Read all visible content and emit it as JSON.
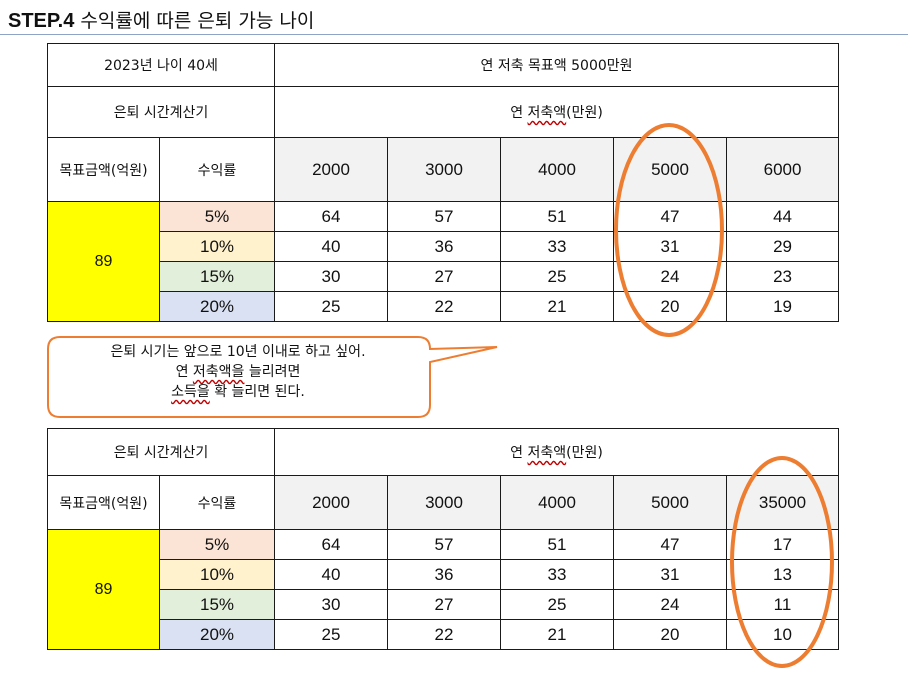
{
  "title": {
    "step": "STEP.4",
    "text": " 수익률에 따른 은퇴 가능 나이"
  },
  "table1": {
    "top_left": "2023년 나이 40세",
    "top_right": "연 저축 목표액 5000만원",
    "calc_label": "은퇴 시간계산기",
    "savings_prefix": "연 ",
    "savings_word": "저축액",
    "savings_suffix": "(만원)",
    "goal_header": "목표금액(억원)",
    "rate_header": "수익률",
    "columns": [
      "2000",
      "3000",
      "4000",
      "5000",
      "6000"
    ],
    "goal_value": "89",
    "rows": [
      {
        "rate": "5%",
        "values": [
          "64",
          "57",
          "51",
          "47",
          "44"
        ]
      },
      {
        "rate": "10%",
        "values": [
          "40",
          "36",
          "33",
          "31",
          "29"
        ]
      },
      {
        "rate": "15%",
        "values": [
          "30",
          "27",
          "25",
          "24",
          "23"
        ]
      },
      {
        "rate": "20%",
        "values": [
          "25",
          "22",
          "21",
          "20",
          "19"
        ]
      }
    ]
  },
  "callout": {
    "line1": "은퇴 시기는 앞으로 10년 이내로 하고 싶어.",
    "line2_prefix": "연 ",
    "line2_word": "저축액을",
    "line2_suffix": " 늘리려면",
    "line3_word": "소득을",
    "line3_suffix": " 확 늘리면 된다."
  },
  "table2": {
    "calc_label": "은퇴 시간계산기",
    "savings_prefix": "연 ",
    "savings_word": "저축액",
    "savings_suffix": "(만원)",
    "goal_header": "목표금액(억원)",
    "rate_header": "수익률",
    "columns": [
      "2000",
      "3000",
      "4000",
      "5000",
      "35000"
    ],
    "goal_value": "89",
    "rows": [
      {
        "rate": "5%",
        "values": [
          "64",
          "57",
          "51",
          "47",
          "17"
        ]
      },
      {
        "rate": "10%",
        "values": [
          "40",
          "36",
          "33",
          "31",
          "13"
        ]
      },
      {
        "rate": "15%",
        "values": [
          "30",
          "27",
          "25",
          "24",
          "11"
        ]
      },
      {
        "rate": "20%",
        "values": [
          "25",
          "22",
          "21",
          "20",
          "10"
        ]
      }
    ]
  },
  "colors": {
    "highlight_ellipse": "#ed7d31",
    "goal_fill": "#ffff00"
  }
}
